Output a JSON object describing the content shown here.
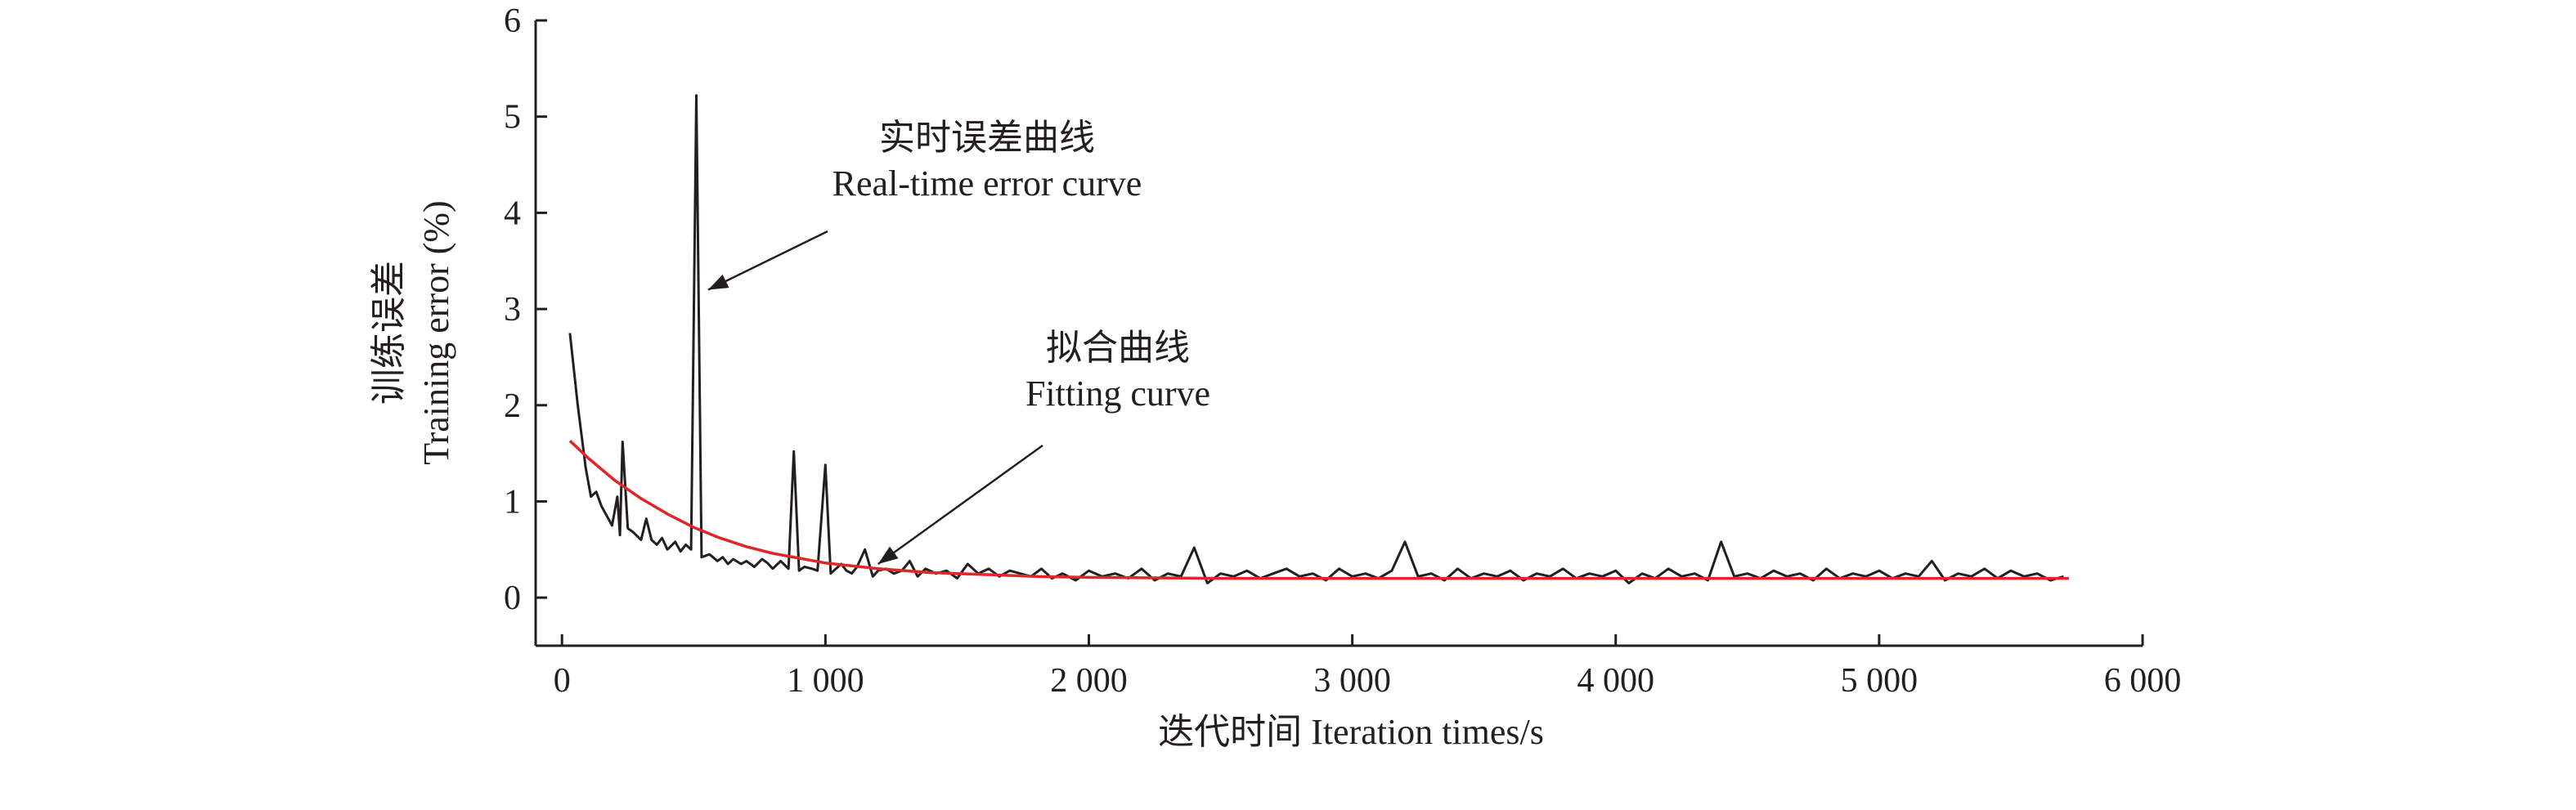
{
  "chart_data": {
    "type": "line",
    "xlabel": "迭代时间 Iteration times/s",
    "ylabel_cn": "训练误差",
    "ylabel_en": "Training error (%)",
    "xlim": [
      -100,
      6000
    ],
    "ylim": [
      -0.5,
      6
    ],
    "xticks": [
      {
        "value": 0,
        "label": "0"
      },
      {
        "value": 1000,
        "label": "1 000"
      },
      {
        "value": 2000,
        "label": "2 000"
      },
      {
        "value": 3000,
        "label": "3 000"
      },
      {
        "value": 4000,
        "label": "4 000"
      },
      {
        "value": 5000,
        "label": "5 000"
      },
      {
        "value": 6000,
        "label": "6 000"
      }
    ],
    "yticks": [
      {
        "value": 0,
        "label": "0"
      },
      {
        "value": 1,
        "label": "1"
      },
      {
        "value": 2,
        "label": "2"
      },
      {
        "value": 3,
        "label": "3"
      },
      {
        "value": 4,
        "label": "4"
      },
      {
        "value": 5,
        "label": "5"
      },
      {
        "value": 6,
        "label": "6"
      }
    ],
    "grid": false,
    "series": [
      {
        "role": "real-time",
        "color": "#231f20",
        "x": [
          30,
          60,
          90,
          110,
          130,
          150,
          170,
          190,
          210,
          220,
          230,
          250,
          270,
          300,
          320,
          340,
          360,
          380,
          400,
          430,
          450,
          470,
          490,
          510,
          530,
          560,
          590,
          610,
          630,
          650,
          680,
          700,
          730,
          760,
          780,
          800,
          830,
          860,
          880,
          900,
          920,
          950,
          970,
          1000,
          1020,
          1040,
          1060,
          1080,
          1100,
          1120,
          1150,
          1180,
          1200,
          1230,
          1260,
          1290,
          1320,
          1350,
          1380,
          1420,
          1460,
          1500,
          1540,
          1580,
          1620,
          1660,
          1700,
          1740,
          1780,
          1820,
          1860,
          1900,
          1950,
          2000,
          2050,
          2100,
          2150,
          2200,
          2250,
          2300,
          2350,
          2400,
          2450,
          2500,
          2550,
          2600,
          2650,
          2700,
          2750,
          2800,
          2850,
          2900,
          2950,
          3000,
          3050,
          3100,
          3150,
          3200,
          3250,
          3300,
          3350,
          3400,
          3450,
          3500,
          3550,
          3600,
          3650,
          3700,
          3750,
          3800,
          3850,
          3900,
          3950,
          4000,
          4050,
          4100,
          4150,
          4200,
          4250,
          4300,
          4350,
          4400,
          4450,
          4500,
          4550,
          4600,
          4650,
          4700,
          4750,
          4800,
          4850,
          4900,
          4950,
          5000,
          5050,
          5100,
          5150,
          5200,
          5250,
          5300,
          5350,
          5400,
          5450,
          5500,
          5550,
          5600,
          5650,
          5700
        ],
        "y": [
          2.75,
          2.0,
          1.35,
          1.05,
          1.1,
          0.95,
          0.85,
          0.75,
          1.05,
          0.65,
          1.62,
          0.72,
          0.68,
          0.6,
          0.82,
          0.6,
          0.55,
          0.62,
          0.5,
          0.58,
          0.48,
          0.55,
          0.5,
          5.22,
          0.42,
          0.45,
          0.38,
          0.42,
          0.35,
          0.4,
          0.35,
          0.38,
          0.32,
          0.4,
          0.36,
          0.3,
          0.38,
          0.3,
          1.52,
          0.28,
          0.32,
          0.3,
          0.28,
          1.38,
          0.25,
          0.3,
          0.35,
          0.28,
          0.25,
          0.32,
          0.5,
          0.22,
          0.28,
          0.3,
          0.25,
          0.28,
          0.38,
          0.22,
          0.3,
          0.25,
          0.28,
          0.2,
          0.35,
          0.25,
          0.3,
          0.22,
          0.28,
          0.25,
          0.22,
          0.3,
          0.2,
          0.25,
          0.18,
          0.28,
          0.22,
          0.25,
          0.2,
          0.3,
          0.18,
          0.25,
          0.22,
          0.52,
          0.15,
          0.25,
          0.22,
          0.28,
          0.2,
          0.25,
          0.3,
          0.22,
          0.25,
          0.18,
          0.3,
          0.22,
          0.25,
          0.2,
          0.28,
          0.58,
          0.22,
          0.25,
          0.18,
          0.3,
          0.2,
          0.25,
          0.22,
          0.28,
          0.18,
          0.25,
          0.22,
          0.3,
          0.2,
          0.25,
          0.22,
          0.28,
          0.15,
          0.25,
          0.2,
          0.3,
          0.22,
          0.25,
          0.18,
          0.58,
          0.22,
          0.25,
          0.2,
          0.28,
          0.22,
          0.25,
          0.18,
          0.3,
          0.2,
          0.25,
          0.22,
          0.28,
          0.2,
          0.25,
          0.22,
          0.38,
          0.18,
          0.25,
          0.22,
          0.3,
          0.2,
          0.28,
          0.22,
          0.25,
          0.18,
          0.22
        ]
      },
      {
        "role": "fitting",
        "color": "#e0262a",
        "x": [
          30,
          100,
          200,
          300,
          400,
          500,
          600,
          700,
          800,
          900,
          1000,
          1200,
          1400,
          1600,
          1800,
          2000,
          2500,
          3000,
          3500,
          4000,
          4500,
          5000,
          5500,
          5720
        ],
        "y": [
          1.63,
          1.45,
          1.22,
          1.03,
          0.87,
          0.73,
          0.62,
          0.53,
          0.46,
          0.41,
          0.36,
          0.3,
          0.26,
          0.24,
          0.22,
          0.21,
          0.2,
          0.2,
          0.2,
          0.2,
          0.2,
          0.2,
          0.2,
          0.2
        ]
      }
    ],
    "annotations": [
      {
        "id": "realtime",
        "text_cn": "实时误差曲线",
        "text_en": "Real-time error curve",
        "arrow_to": [
          555,
          3.2
        ]
      },
      {
        "id": "fitting",
        "text_cn": "拟合曲线",
        "text_en": "Fitting curve",
        "arrow_to": [
          1200,
          0.35
        ]
      }
    ]
  }
}
